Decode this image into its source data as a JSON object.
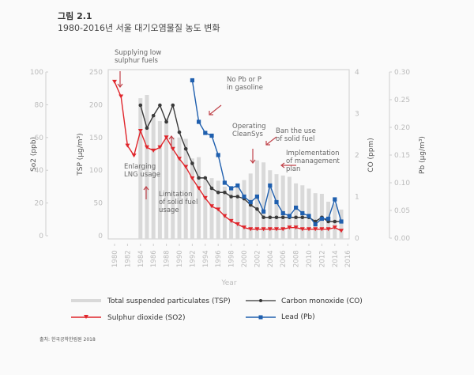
{
  "figure": {
    "label": "그림 2.1",
    "title": "1980-2016년 서울 대기오염물질 농도 변화",
    "source": "출처: 한국공학한림원 2018"
  },
  "chart_data": {
    "type": "bar+line",
    "title": "1980-2016년 서울 대기오염물질 농도 변화",
    "xlabel": "Year",
    "x_ticks": [
      "1980",
      "1982",
      "1984",
      "1986",
      "1988",
      "1990",
      "1992",
      "1994",
      "1996",
      "1998",
      "2000",
      "2002",
      "2004",
      "2006",
      "2008",
      "2010",
      "2012",
      "2014",
      "2016"
    ],
    "x_range": [
      1980,
      2016
    ],
    "axes": {
      "so2": {
        "label": "So2 (ppb)",
        "range": [
          0,
          100
        ],
        "ticks": [
          "0",
          "20",
          "40",
          "60",
          "80",
          "100"
        ]
      },
      "tsp": {
        "label": "TSP (µg/m³)",
        "range": [
          0,
          250
        ],
        "ticks": [
          "0",
          "50",
          "100",
          "150",
          "200",
          "250"
        ]
      },
      "co": {
        "label": "CO (ppm)",
        "range": [
          0,
          4
        ],
        "ticks": [
          "0",
          "1",
          "2",
          "3",
          "4"
        ]
      },
      "pb": {
        "label": "Pb (µg/m³)",
        "range": [
          0,
          0.3
        ],
        "ticks": [
          "0.00",
          "0.05",
          "0.10",
          "0.15",
          "0.20",
          "0.25",
          "0.30"
        ]
      }
    },
    "series": [
      {
        "name": "Total suspended particulates (TSP)",
        "kind": "bar",
        "axis": "tsp",
        "color": "#d9d9d9",
        "x": [
          1984,
          1985,
          1986,
          1987,
          1988,
          1989,
          1990,
          1991,
          1992,
          1993,
          1994,
          1995,
          1996,
          1997,
          1998,
          1999,
          2000,
          2001,
          2002,
          2003,
          2004,
          2005,
          2006,
          2007,
          2008,
          2009,
          2010,
          2011,
          2012,
          2013,
          2014,
          2015
        ],
        "values": [
          210,
          215,
          183,
          175,
          179,
          150,
          150,
          148,
          118,
          120,
          85,
          88,
          84,
          75,
          72,
          78,
          85,
          95,
          115,
          112,
          100,
          94,
          92,
          90,
          80,
          77,
          72,
          65,
          64,
          52,
          48,
          40
        ]
      },
      {
        "name": "Sulphur dioxide (SO2)",
        "kind": "line",
        "marker": "triangle-down",
        "axis": "so2",
        "color": "#e0252b",
        "x": [
          1980,
          1981,
          1982,
          1983,
          1984,
          1985,
          1986,
          1987,
          1988,
          1989,
          1990,
          1991,
          1992,
          1993,
          1994,
          1995,
          1996,
          1997,
          1998,
          1999,
          2000,
          2001,
          2002,
          2003,
          2004,
          2005,
          2006,
          2007,
          2008,
          2009,
          2010,
          2011,
          2012,
          2013,
          2014,
          2015
        ],
        "values": [
          94,
          85,
          55,
          49,
          64,
          54,
          52,
          54,
          60,
          53,
          47,
          42,
          35,
          29,
          23,
          18,
          16,
          12,
          9,
          7,
          5,
          4,
          4,
          4,
          4,
          4,
          4,
          5,
          5,
          4,
          4,
          4,
          4,
          4,
          5,
          3
        ]
      },
      {
        "name": "Carbon monoxide (CO)",
        "kind": "line",
        "marker": "circle",
        "axis": "co",
        "color": "#3a3a3a",
        "x": [
          1984,
          1985,
          1986,
          1987,
          1988,
          1989,
          1990,
          1991,
          1992,
          1993,
          1994,
          1995,
          1996,
          1997,
          1998,
          1999,
          2000,
          2001,
          2002,
          2003,
          2004,
          2005,
          2006,
          2007,
          2008,
          2009,
          2010,
          2011,
          2012,
          2013,
          2014,
          2015
        ],
        "values": [
          3.2,
          2.65,
          2.95,
          3.2,
          2.8,
          3.2,
          2.55,
          2.15,
          1.8,
          1.45,
          1.45,
          1.2,
          1.1,
          1.1,
          1.0,
          1.0,
          0.95,
          0.8,
          0.7,
          0.5,
          0.5,
          0.5,
          0.5,
          0.5,
          0.5,
          0.5,
          0.5,
          0.4,
          0.5,
          0.4,
          0.4,
          0.4
        ]
      },
      {
        "name": "Lead (Pb)",
        "kind": "line",
        "marker": "square",
        "axis": "pb",
        "color": "#1f5fae",
        "x": [
          1992,
          1993,
          1994,
          1995,
          1996,
          1997,
          1998,
          1999,
          2000,
          2001,
          2002,
          2003,
          2004,
          2005,
          2006,
          2007,
          2008,
          2009,
          2010,
          2011,
          2012,
          2013,
          2014,
          2015
        ],
        "values": [
          0.285,
          0.21,
          0.19,
          0.185,
          0.15,
          0.1,
          0.09,
          0.095,
          0.075,
          0.065,
          0.075,
          0.048,
          0.095,
          0.065,
          0.045,
          0.04,
          0.055,
          0.045,
          0.04,
          0.025,
          0.035,
          0.035,
          0.07,
          0.03
        ]
      }
    ],
    "annotations": [
      {
        "text": [
          "Supplying low",
          "sulphur fuels"
        ],
        "year": 1981
      },
      {
        "text": [
          "Enlarging",
          "LNG usage"
        ],
        "year": 1985
      },
      {
        "text": [
          "Limitation",
          "of solid fuel",
          "usage"
        ],
        "year": 1990
      },
      {
        "text": [
          "No Pb or P",
          "in gasoline"
        ],
        "year": 1993
      },
      {
        "text": [
          "Operating",
          "CleanSys"
        ],
        "year": 2002
      },
      {
        "text": [
          "Ban the use",
          "of solid fuel"
        ],
        "year": 2004
      },
      {
        "text": [
          "Implementation",
          "of management",
          "plan"
        ],
        "year": 2005
      }
    ],
    "legend": {
      "placement": "bottom",
      "items": [
        "Total suspended particulates (TSP)",
        "Carbon monoxide (CO)",
        "Sulphur dioxide (SO2)",
        "Lead (Pb)"
      ]
    },
    "grid": false
  }
}
